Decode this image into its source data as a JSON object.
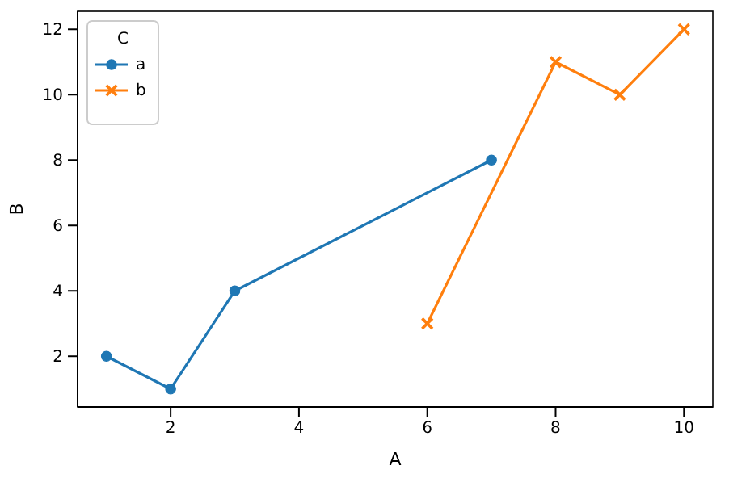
{
  "chart_data": {
    "type": "line",
    "xlabel": "A",
    "ylabel": "B",
    "legend_title": "C",
    "legend": "top left",
    "grid": false,
    "xlim": [
      0.55,
      10.45
    ],
    "xticks": [
      2,
      4,
      6,
      8,
      10
    ],
    "ylim": [
      0.45,
      12.55
    ],
    "yticks": [
      2,
      4,
      6,
      8,
      10,
      12
    ],
    "series": [
      {
        "name": "a",
        "color": "#1f77b4",
        "marker": "circle",
        "x": [
          1,
          2,
          3,
          7
        ],
        "values": [
          2,
          1,
          4,
          8
        ]
      },
      {
        "name": "b",
        "color": "#ff7f0e",
        "marker": "cross",
        "x": [
          6,
          8,
          9,
          10
        ],
        "values": [
          3,
          11,
          10,
          12
        ]
      }
    ]
  }
}
